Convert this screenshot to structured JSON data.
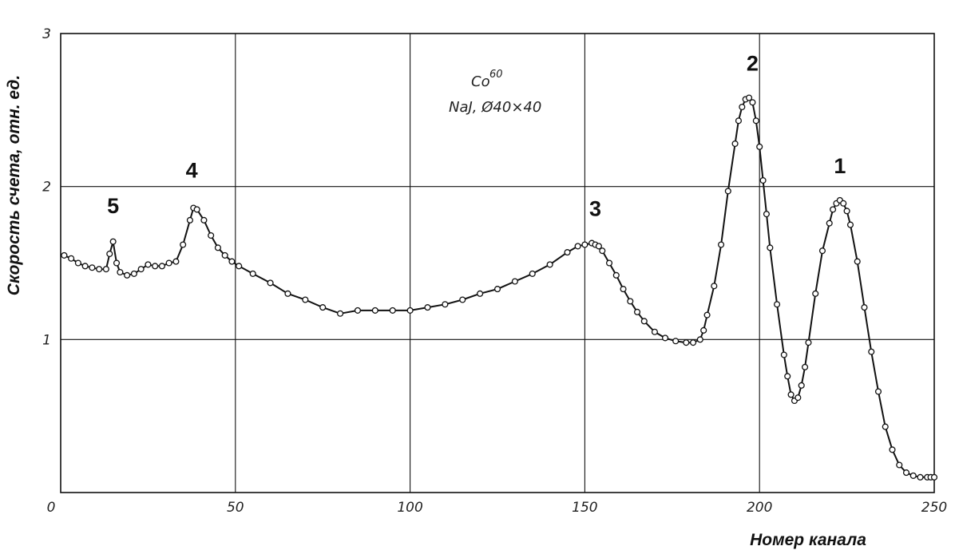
{
  "chart_data": {
    "type": "scatter",
    "title": "",
    "xlabel": "Номер канала",
    "ylabel": "Скорость счета, отн. ед.",
    "xlim": [
      0,
      250
    ],
    "ylim": [
      0,
      3
    ],
    "x_ticks": [
      "0",
      "50",
      "100",
      "150",
      "200",
      "250"
    ],
    "y_ticks": [
      "1",
      "2",
      "3"
    ],
    "grid": true,
    "annotation": {
      "isotope": "Co",
      "mass_number": "60",
      "detector": "NaJ, Ø40×40"
    },
    "peak_labels": [
      {
        "label": "1",
        "x": 223,
        "y": 1.91
      },
      {
        "label": "2",
        "x": 198,
        "y": 2.58
      },
      {
        "label": "3",
        "x": 153,
        "y": 1.63
      },
      {
        "label": "4",
        "x": 37.5,
        "y": 1.88
      },
      {
        "label": "5",
        "x": 15,
        "y": 1.65
      }
    ],
    "series": [
      {
        "x": [
          1,
          3,
          5,
          7,
          9,
          11,
          13,
          14,
          15,
          16,
          17,
          19,
          21,
          23,
          25,
          27,
          29,
          31,
          33,
          35,
          37,
          38,
          39,
          41,
          43,
          45,
          47,
          49,
          51,
          55,
          60,
          65,
          70,
          75,
          80,
          85,
          90,
          95,
          100,
          105,
          110,
          115,
          120,
          125,
          130,
          135,
          140,
          145,
          148,
          150,
          152,
          153,
          154,
          155,
          157,
          159,
          161,
          163,
          165,
          167,
          170,
          173,
          176,
          179,
          181,
          183,
          184,
          185,
          187,
          189,
          191,
          193,
          194,
          195,
          196,
          197,
          198,
          199,
          200,
          201,
          202,
          203,
          205,
          207,
          208,
          209,
          210,
          211,
          212,
          213,
          214,
          216,
          218,
          220,
          221,
          222,
          223,
          224,
          225,
          226,
          228,
          230,
          232,
          234,
          236,
          238,
          240,
          242,
          244,
          246,
          248,
          249,
          250
        ],
        "y": [
          1.55,
          1.53,
          1.5,
          1.48,
          1.47,
          1.46,
          1.46,
          1.56,
          1.64,
          1.5,
          1.44,
          1.42,
          1.43,
          1.46,
          1.49,
          1.48,
          1.48,
          1.5,
          1.51,
          1.62,
          1.78,
          1.86,
          1.85,
          1.78,
          1.68,
          1.6,
          1.55,
          1.51,
          1.48,
          1.43,
          1.37,
          1.3,
          1.26,
          1.21,
          1.17,
          1.19,
          1.19,
          1.19,
          1.19,
          1.21,
          1.23,
          1.26,
          1.3,
          1.33,
          1.38,
          1.43,
          1.49,
          1.57,
          1.61,
          1.62,
          1.63,
          1.62,
          1.61,
          1.58,
          1.5,
          1.42,
          1.33,
          1.25,
          1.18,
          1.12,
          1.05,
          1.01,
          0.99,
          0.98,
          0.98,
          1.0,
          1.06,
          1.16,
          1.35,
          1.62,
          1.97,
          2.28,
          2.43,
          2.52,
          2.57,
          2.58,
          2.55,
          2.43,
          2.26,
          2.04,
          1.82,
          1.6,
          1.23,
          0.9,
          0.76,
          0.64,
          0.6,
          0.62,
          0.7,
          0.82,
          0.98,
          1.3,
          1.58,
          1.76,
          1.85,
          1.89,
          1.91,
          1.89,
          1.84,
          1.75,
          1.51,
          1.21,
          0.92,
          0.66,
          0.43,
          0.28,
          0.18,
          0.13,
          0.11,
          0.1,
          0.1,
          0.1,
          0.1
        ]
      }
    ]
  }
}
